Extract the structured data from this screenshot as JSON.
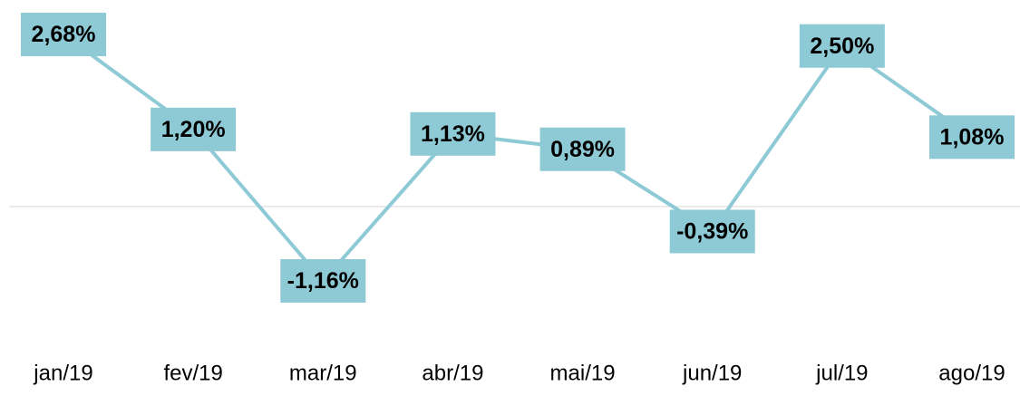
{
  "chart_data": {
    "type": "line",
    "categories": [
      "jan/19",
      "fev/19",
      "mar/19",
      "abr/19",
      "mai/19",
      "jun/19",
      "jul/19",
      "ago/19"
    ],
    "series": [
      {
        "color": "#8ecad6",
        "values": [
          2.68,
          1.2,
          -1.16,
          1.13,
          0.89,
          -0.39,
          2.5,
          1.08
        ],
        "value_labels": [
          "2,68%",
          "1,20%",
          "-1,16%",
          "1,13%",
          "0,89%",
          "-0,39%",
          "2,50%",
          "1,08%"
        ]
      }
    ]
  }
}
